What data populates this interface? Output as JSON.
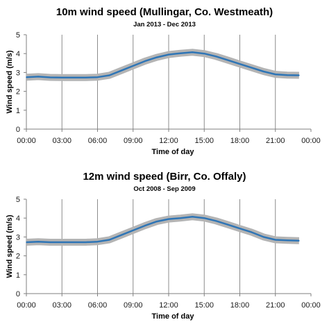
{
  "chart_data": [
    {
      "type": "line",
      "title": "10m wind speed (Mullingar, Co. Westmeath)",
      "subtitle": "Jan 2013 - Dec 2013",
      "xlabel": "Time of day",
      "ylabel": "Wind speed (m/s)",
      "x_ticks": [
        "00:00",
        "03:00",
        "06:00",
        "09:00",
        "12:00",
        "15:00",
        "18:00",
        "21:00",
        "00:00"
      ],
      "y_ticks": [
        "0",
        "1",
        "2",
        "3",
        "4",
        "5"
      ],
      "ylim": [
        0,
        5
      ],
      "xlim": [
        0,
        24
      ],
      "grid": "vertical",
      "colors": {
        "line": "#2e75b6",
        "band": "#b4b4b4",
        "grid": "#8c8c8c"
      },
      "x": [
        0,
        1,
        2,
        3,
        4,
        5,
        6,
        7,
        8,
        9,
        10,
        11,
        12,
        13,
        14,
        15,
        16,
        17,
        18,
        19,
        20,
        21,
        22,
        23
      ],
      "series": [
        {
          "values": [
            2.75,
            2.78,
            2.74,
            2.73,
            2.73,
            2.73,
            2.75,
            2.85,
            3.1,
            3.35,
            3.6,
            3.8,
            3.95,
            4.02,
            4.07,
            4.0,
            3.85,
            3.65,
            3.45,
            3.25,
            3.05,
            2.9,
            2.86,
            2.85
          ]
        }
      ]
    },
    {
      "type": "line",
      "title": "12m wind speed (Birr, Co. Offaly)",
      "subtitle": "Oct 2008 - Sep 2009",
      "xlabel": "Time of day",
      "ylabel": "Wind speed (m/s)",
      "x_ticks": [
        "00:00",
        "03:00",
        "06:00",
        "09:00",
        "12:00",
        "15:00",
        "18:00",
        "21:00",
        "00:00"
      ],
      "y_ticks": [
        "0",
        "1",
        "2",
        "3",
        "4",
        "5"
      ],
      "ylim": [
        0,
        5
      ],
      "xlim": [
        0,
        24
      ],
      "grid": "vertical",
      "colors": {
        "line": "#2e75b6",
        "band": "#b4b4b4",
        "grid": "#8c8c8c"
      },
      "x": [
        0,
        1,
        2,
        3,
        4,
        5,
        6,
        7,
        8,
        9,
        10,
        11,
        12,
        13,
        14,
        15,
        16,
        17,
        18,
        19,
        20,
        21,
        22,
        23
      ],
      "series": [
        {
          "values": [
            2.72,
            2.75,
            2.72,
            2.72,
            2.72,
            2.72,
            2.75,
            2.85,
            3.1,
            3.35,
            3.6,
            3.82,
            3.95,
            4.0,
            4.07,
            4.0,
            3.85,
            3.65,
            3.45,
            3.25,
            3.0,
            2.85,
            2.82,
            2.8
          ]
        }
      ]
    }
  ]
}
